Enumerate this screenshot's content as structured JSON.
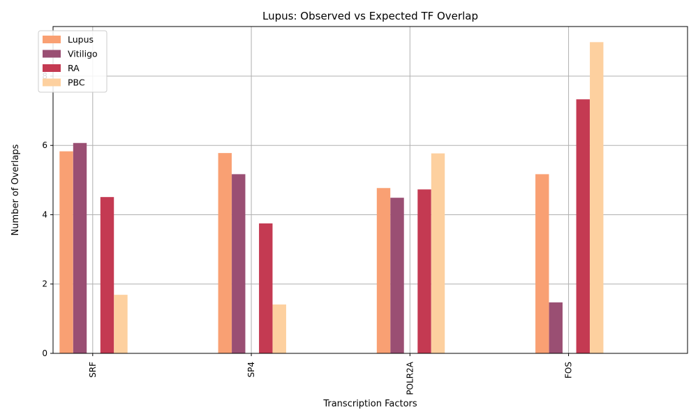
{
  "chart_data": {
    "type": "bar",
    "title": "Lupus: Observed vs Expected TF Overlap",
    "xlabel": "Transcription Factors",
    "ylabel": "Number of Overlaps",
    "categories": [
      "SRF",
      "SP4",
      "POLR2A",
      "FOS"
    ],
    "series": [
      {
        "name": "Lupus",
        "color": "#f9a073",
        "values": [
          5.83,
          5.78,
          4.77,
          5.17
        ]
      },
      {
        "name": "Vitiligo",
        "color": "#9a4f73",
        "values": [
          6.07,
          5.17,
          4.49,
          1.47
        ]
      },
      {
        "name": "RA",
        "color": "#c43a52",
        "values": [
          4.51,
          3.75,
          4.73,
          7.33
        ]
      },
      {
        "name": "PBC",
        "color": "#fdd09f",
        "values": [
          1.69,
          1.41,
          5.77,
          8.98
        ]
      }
    ],
    "ylim": [
      0,
      9.43
    ],
    "yticks": [
      0,
      2,
      4,
      6,
      8
    ],
    "grid": true,
    "legend_position": "upper-left"
  }
}
